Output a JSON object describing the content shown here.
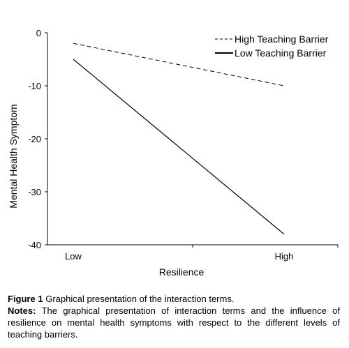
{
  "chart_data": {
    "type": "line",
    "categories": [
      "Low",
      "High"
    ],
    "series": [
      {
        "name": "High Teaching Barrier",
        "values": [
          -2,
          -10
        ],
        "style": "dashed",
        "color": "#000000"
      },
      {
        "name": "Low Teaching Barrier",
        "values": [
          -5,
          -38
        ],
        "style": "solid",
        "color": "#000000"
      }
    ],
    "xlabel": "Resilience",
    "ylabel": "Mental Health Symptom",
    "ylim": [
      -40,
      0
    ],
    "yticks": [
      0,
      -10,
      -20,
      -30,
      -40
    ],
    "grid": false,
    "legend_position": "top-right"
  },
  "caption": {
    "figure_label": "Figure 1",
    "title": "Graphical presentation of the interaction terms.",
    "notes_label": "Notes:",
    "notes_text": "The graphical presentation of interaction terms and the influence of resilience on mental health symptoms with respect to the different levels of teaching barriers."
  }
}
